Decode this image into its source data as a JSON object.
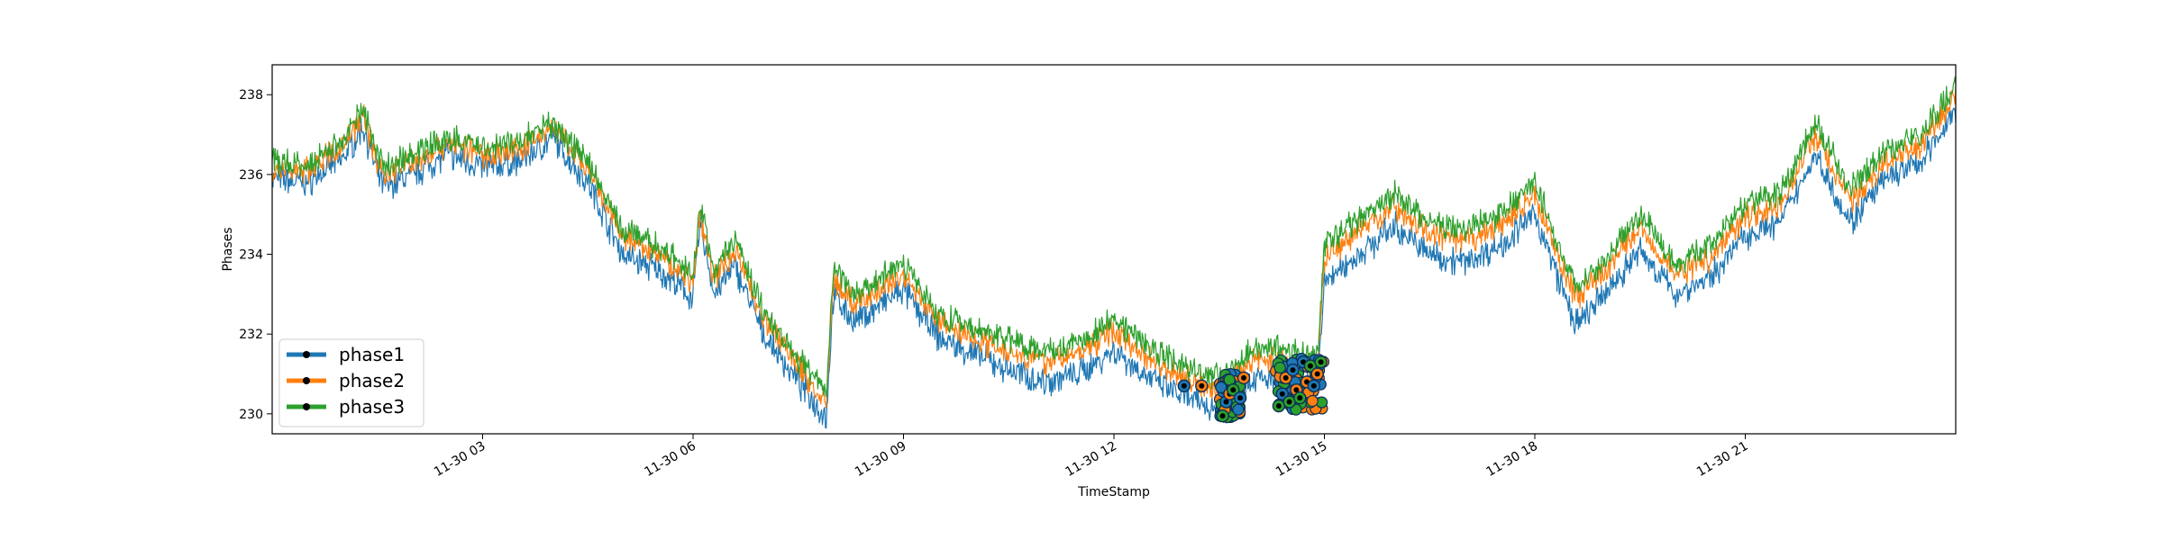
{
  "chart_data": {
    "type": "line",
    "xlabel": "TimeStamp",
    "ylabel": "Phases",
    "x_ticks": [
      "11-30 03",
      "11-30 06",
      "11-30 09",
      "11-30 12",
      "11-30 15",
      "11-30 18",
      "11-30 21"
    ],
    "x_tick_hours": [
      3,
      6,
      9,
      12,
      15,
      18,
      21
    ],
    "xlim_hours": [
      0,
      24
    ],
    "y_ticks": [
      230,
      232,
      234,
      236,
      238
    ],
    "ylim": [
      229.5,
      238.75
    ],
    "grid": false,
    "legend_position": "lower-left",
    "series": [
      {
        "name": "phase1",
        "color": "#1f77b4"
      },
      {
        "name": "phase2",
        "color": "#ff7f0e"
      },
      {
        "name": "phase3",
        "color": "#2ca02c"
      }
    ],
    "x_hours": [
      0.0,
      0.5,
      1.0,
      1.3,
      1.5,
      1.6,
      2.0,
      2.5,
      3.0,
      3.5,
      4.0,
      4.5,
      5.0,
      5.5,
      6.0,
      6.1,
      6.3,
      6.6,
      7.0,
      7.5,
      7.9,
      8.0,
      8.3,
      9.0,
      9.5,
      10.0,
      10.5,
      11.0,
      11.5,
      12.0,
      12.5,
      13.0,
      13.5,
      14.0,
      14.5,
      14.9,
      15.0,
      15.5,
      16.0,
      16.5,
      17.0,
      17.5,
      18.0,
      18.5,
      18.6,
      19.0,
      19.5,
      20.0,
      20.5,
      21.0,
      21.5,
      22.0,
      22.5,
      23.0,
      23.5,
      24.0
    ],
    "phase3_values": [
      236.3,
      236.2,
      236.9,
      237.6,
      236.5,
      236.2,
      236.5,
      236.9,
      236.7,
      236.8,
      237.3,
      236.3,
      234.6,
      234.2,
      233.5,
      235.2,
      233.6,
      234.4,
      232.6,
      231.4,
      230.5,
      233.7,
      233.0,
      233.8,
      232.5,
      232.1,
      231.9,
      231.6,
      231.8,
      232.4,
      231.7,
      231.2,
      230.9,
      231.7,
      231.6,
      231.4,
      234.2,
      234.9,
      235.5,
      234.8,
      234.6,
      235.0,
      235.8,
      233.5,
      233.2,
      233.9,
      235.0,
      233.8,
      234.2,
      235.3,
      235.5,
      237.3,
      235.6,
      236.6,
      237.0,
      238.2
    ],
    "phase2_values": [
      236.1,
      236.1,
      236.7,
      237.5,
      236.3,
      236.0,
      236.3,
      236.8,
      236.5,
      236.6,
      237.2,
      236.1,
      234.4,
      234.0,
      233.3,
      235.0,
      233.4,
      234.1,
      232.4,
      231.2,
      230.2,
      233.4,
      232.7,
      233.5,
      232.3,
      231.9,
      231.6,
      231.3,
      231.5,
      232.1,
      231.4,
      230.9,
      230.6,
      231.4,
      231.3,
      231.1,
      233.9,
      234.6,
      235.2,
      234.5,
      234.3,
      234.7,
      235.5,
      233.2,
      232.9,
      233.6,
      234.7,
      233.5,
      233.9,
      235.0,
      235.2,
      237.0,
      235.3,
      236.3,
      236.7,
      238.0
    ],
    "phase1_values": [
      235.9,
      235.8,
      236.4,
      237.2,
      236.0,
      235.7,
      236.0,
      236.5,
      236.2,
      236.3,
      236.9,
      235.8,
      234.0,
      233.6,
      232.9,
      234.8,
      233.0,
      233.7,
      232.0,
      230.8,
      229.9,
      233.0,
      232.3,
      233.1,
      231.9,
      231.5,
      231.1,
      230.8,
      231.0,
      231.6,
      230.9,
      230.4,
      230.1,
      230.9,
      230.8,
      230.6,
      233.3,
      234.0,
      234.7,
      234.0,
      233.8,
      234.2,
      235.0,
      232.6,
      232.2,
      233.0,
      234.1,
      233.0,
      233.4,
      234.5,
      234.8,
      236.5,
      234.8,
      235.9,
      236.3,
      237.6
    ],
    "anomaly_windows": [
      {
        "start_hour": 13.5,
        "end_hour": 13.8,
        "y_min": 229.9,
        "y_max": 231.0
      },
      {
        "start_hour": 14.3,
        "end_hour": 15.0,
        "y_min": 230.1,
        "y_max": 231.4
      }
    ],
    "anomaly_points": [
      {
        "x_hour": 13.0,
        "y": 230.7
      },
      {
        "x_hour": 13.25,
        "y": 230.7
      },
      {
        "x_hour": 13.55,
        "y": 229.95
      },
      {
        "x_hour": 13.6,
        "y": 230.3
      },
      {
        "x_hour": 13.65,
        "y": 230.5
      },
      {
        "x_hour": 13.7,
        "y": 230.6
      },
      {
        "x_hour": 13.8,
        "y": 230.4
      },
      {
        "x_hour": 13.85,
        "y": 230.9
      },
      {
        "x_hour": 14.35,
        "y": 230.2
      },
      {
        "x_hour": 14.4,
        "y": 230.5
      },
      {
        "x_hour": 14.45,
        "y": 230.9
      },
      {
        "x_hour": 14.5,
        "y": 230.3
      },
      {
        "x_hour": 14.55,
        "y": 231.1
      },
      {
        "x_hour": 14.6,
        "y": 230.6
      },
      {
        "x_hour": 14.65,
        "y": 230.4
      },
      {
        "x_hour": 14.7,
        "y": 231.3
      },
      {
        "x_hour": 14.75,
        "y": 230.8
      },
      {
        "x_hour": 14.8,
        "y": 231.2
      },
      {
        "x_hour": 14.85,
        "y": 230.7
      },
      {
        "x_hour": 14.9,
        "y": 231.0
      },
      {
        "x_hour": 14.95,
        "y": 231.3
      }
    ]
  }
}
